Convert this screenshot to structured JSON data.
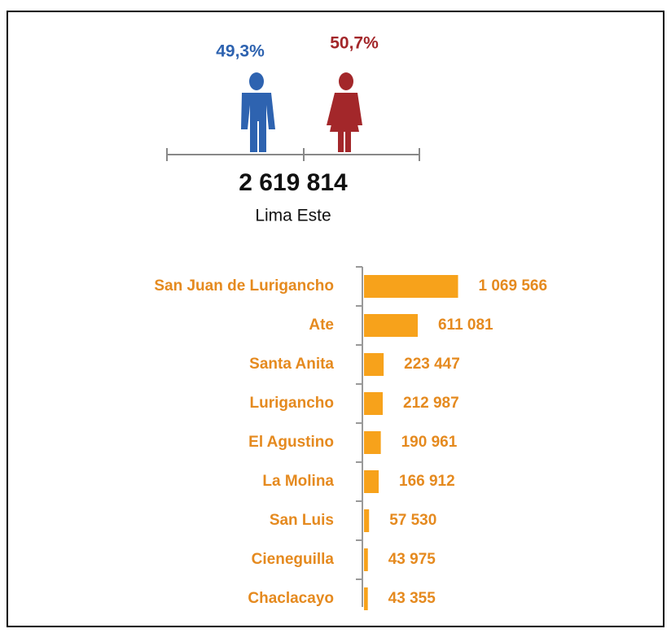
{
  "chart_data": [
    {
      "type": "pictogram",
      "categories": [
        null,
        null
      ],
      "values": [
        49.3,
        50.7
      ],
      "value_labels": [
        "49,3%",
        "50,7%"
      ],
      "colors": [
        "#2e63b0",
        "#a3272a"
      ],
      "total": {
        "value": 2619814,
        "label": "2 619 814"
      },
      "subtitle": "Lima Este"
    },
    {
      "type": "bar",
      "orientation": "horizontal",
      "categories": [
        "San Juan de Lurigancho",
        "Ate",
        "Santa Anita",
        "Lurigancho",
        "El Agustino",
        "La Molina",
        "San Luis",
        "Cieneguilla",
        "Chaclacayo"
      ],
      "values": [
        1069566,
        611081,
        223447,
        212987,
        190961,
        166912,
        57530,
        43975,
        43355
      ],
      "value_labels": [
        "1 069 566",
        "611 081",
        "223 447",
        "212 987",
        "190 961",
        "166 912",
        "57 530",
        "43 975",
        "43 355"
      ],
      "color": "#f7a21b",
      "label_color": "#e58a1f",
      "xlim": [
        0,
        1000000
      ]
    }
  ]
}
